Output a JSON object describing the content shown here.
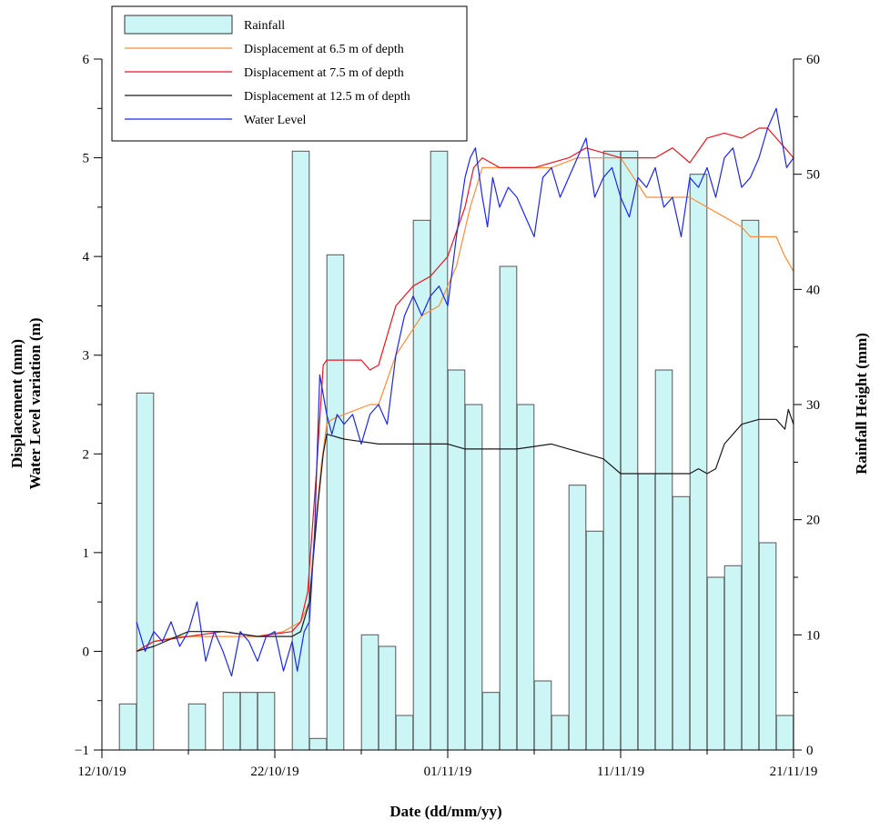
{
  "chart_data": {
    "type": "bar+line",
    "title": "",
    "xlabel": "Date (dd/mm/yy)",
    "ylabel_left_1": "Displacement (mm)",
    "ylabel_left_2": "Water Level variation (m)",
    "ylabel_right": "Rainfall Height (mm)",
    "x_ticks": [
      "12/10/19",
      "22/10/19",
      "01/11/19",
      "11/11/19",
      "21/11/19"
    ],
    "x_tick_days": [
      0,
      10,
      20,
      30,
      40
    ],
    "y_left_ticks": [
      "−1",
      "−0.5",
      "0",
      "0.5",
      "1",
      "1.5",
      "2",
      "2.5",
      "3",
      "3.5",
      "4",
      "4.5",
      "5",
      "5.5",
      "6"
    ],
    "y_left_labeled": [
      "−1",
      "0",
      "1",
      "2",
      "3",
      "4",
      "5",
      "6"
    ],
    "y_right_labeled": [
      "0",
      "10",
      "20",
      "30",
      "40",
      "50",
      "60"
    ],
    "ylim_left": [
      -1,
      6
    ],
    "ylim_right": [
      0,
      60
    ],
    "legend": {
      "placement": "top-left",
      "entries": [
        {
          "label": "Rainfall",
          "kind": "bar",
          "color": "#ccf6f6"
        },
        {
          "label": "Displacement at 6.5 m of depth",
          "kind": "line",
          "color": "#ff8c3a"
        },
        {
          "label": "Displacement at 7.5 m of depth",
          "kind": "line",
          "color": "#e8161e"
        },
        {
          "label": "Displacement at 12.5 m of depth",
          "kind": "line",
          "color": "#1a1a1a"
        },
        {
          "label": "Water Level",
          "kind": "line",
          "color": "#1e28e6"
        }
      ]
    },
    "rainfall": {
      "name": "Rainfall",
      "color": "#ccf6f6",
      "day_offset": [
        1.5,
        2.5,
        5.5,
        7.5,
        8.5,
        9.5,
        11.5,
        12.5,
        13.5,
        15.5,
        16.5,
        17.5,
        18.5,
        19.5,
        20.5,
        21.5,
        22.5,
        23.5,
        24.5,
        25.5,
        26.5,
        27.5,
        28.5,
        29.5,
        30.5,
        31.5,
        32.5,
        33.5,
        34.5,
        35.5,
        36.5,
        37.5,
        38.5,
        39.5
      ],
      "values": [
        4,
        31,
        4,
        5,
        5,
        5,
        52,
        1,
        43,
        10,
        9,
        3,
        46,
        52,
        33,
        30,
        5,
        42,
        30,
        6,
        3,
        23,
        19,
        52,
        52,
        24,
        33,
        22,
        50,
        15,
        16,
        46,
        18,
        3
      ]
    },
    "series": [
      {
        "name": "Displacement at 6.5 m of depth",
        "axis": "left",
        "color": "#ff8c3a",
        "x_days": [
          2.0,
          3.0,
          4.5,
          6.0,
          7.5,
          9.0,
          10.5,
          11.5,
          12.0,
          12.3,
          12.7,
          13.0,
          13.3,
          14.0,
          15.5,
          16.0,
          17.0,
          18.5,
          19.5,
          20.5,
          21.3,
          22.0,
          23.0,
          24.5,
          26.0,
          27.5,
          28.0,
          30.0,
          31.5,
          33.0,
          34.0,
          35.0,
          36.0,
          37.0,
          37.5,
          39.0,
          39.5,
          40.0
        ],
        "values": [
          0.0,
          0.1,
          0.15,
          0.15,
          0.15,
          0.15,
          0.2,
          0.3,
          0.5,
          1.2,
          1.9,
          2.3,
          2.35,
          2.4,
          2.5,
          2.5,
          3.0,
          3.4,
          3.5,
          3.9,
          4.5,
          4.9,
          4.9,
          4.9,
          4.9,
          5.0,
          5.0,
          5.0,
          4.6,
          4.6,
          4.6,
          4.5,
          4.4,
          4.3,
          4.2,
          4.2,
          4.0,
          3.85
        ]
      },
      {
        "name": "Displacement at 7.5 m of depth",
        "axis": "left",
        "color": "#e8161e",
        "x_days": [
          2.0,
          3.0,
          5.0,
          7.0,
          9.0,
          11.0,
          11.5,
          11.9,
          12.4,
          12.8,
          13.0,
          14.0,
          15.0,
          15.5,
          16.0,
          17.0,
          18.0,
          19.0,
          20.0,
          21.0,
          21.5,
          22.0,
          23.0,
          25.0,
          27.0,
          28.0,
          30.0,
          32.0,
          33.0,
          34.0,
          35.0,
          36.0,
          37.0,
          38.0,
          38.5,
          39.0,
          39.5,
          40.0
        ],
        "values": [
          0.0,
          0.1,
          0.15,
          0.2,
          0.15,
          0.2,
          0.3,
          0.6,
          1.8,
          2.9,
          2.95,
          2.95,
          2.95,
          2.85,
          2.9,
          3.5,
          3.7,
          3.8,
          4.0,
          4.5,
          4.9,
          5.0,
          4.9,
          4.9,
          5.0,
          5.1,
          5.0,
          5.0,
          5.1,
          4.95,
          5.2,
          5.25,
          5.2,
          5.3,
          5.3,
          5.2,
          5.1,
          5.0
        ]
      },
      {
        "name": "Displacement at 12.5 m of depth",
        "axis": "left",
        "color": "#1a1a1a",
        "x_days": [
          2.0,
          3.0,
          5.0,
          7.0,
          9.0,
          11.0,
          11.5,
          12.0,
          12.5,
          12.8,
          13.0,
          14.0,
          16.0,
          18.0,
          20.0,
          21.0,
          22.0,
          24.0,
          26.0,
          27.0,
          28.0,
          29.0,
          30.0,
          32.0,
          33.0,
          34.0,
          34.5,
          35.0,
          35.5,
          36.0,
          37.0,
          38.0,
          39.0,
          39.5,
          39.7,
          40.0
        ],
        "values": [
          0.0,
          0.05,
          0.2,
          0.2,
          0.15,
          0.15,
          0.2,
          0.5,
          1.5,
          2.0,
          2.2,
          2.15,
          2.1,
          2.1,
          2.1,
          2.05,
          2.05,
          2.05,
          2.1,
          2.05,
          2.0,
          1.95,
          1.8,
          1.8,
          1.8,
          1.8,
          1.85,
          1.8,
          1.85,
          2.1,
          2.3,
          2.35,
          2.35,
          2.25,
          2.45,
          2.3
        ]
      },
      {
        "name": "Water Level",
        "axis": "left",
        "color": "#1e28e6",
        "x_days": [
          2.0,
          2.5,
          3.0,
          3.5,
          4.0,
          4.5,
          5.0,
          5.5,
          6.0,
          6.5,
          7.0,
          7.5,
          8.0,
          8.5,
          9.0,
          9.5,
          10.0,
          10.5,
          11.0,
          11.3,
          11.7,
          12.0,
          12.3,
          12.6,
          13.0,
          13.3,
          13.6,
          14.0,
          14.5,
          15.0,
          15.5,
          16.0,
          16.5,
          17.0,
          17.5,
          18.0,
          18.5,
          19.0,
          19.5,
          20.0,
          20.5,
          21.0,
          21.3,
          21.6,
          22.0,
          22.3,
          22.6,
          23.0,
          23.5,
          24.0,
          24.5,
          25.0,
          25.5,
          26.0,
          26.5,
          27.0,
          27.5,
          28.0,
          28.5,
          29.0,
          29.5,
          30.0,
          30.5,
          31.0,
          31.5,
          32.0,
          32.5,
          33.0,
          33.5,
          34.0,
          34.5,
          35.0,
          35.5,
          36.0,
          36.5,
          37.0,
          37.5,
          38.0,
          38.5,
          39.0,
          39.3,
          39.6,
          40.0
        ],
        "values": [
          0.3,
          0.0,
          0.2,
          0.1,
          0.3,
          0.05,
          0.2,
          0.5,
          -0.1,
          0.2,
          0.0,
          -0.25,
          0.2,
          0.1,
          -0.1,
          0.15,
          0.2,
          -0.2,
          0.1,
          -0.2,
          0.2,
          0.3,
          1.2,
          2.8,
          2.4,
          2.2,
          2.4,
          2.3,
          2.4,
          2.1,
          2.4,
          2.5,
          2.3,
          3.0,
          3.4,
          3.6,
          3.4,
          3.6,
          3.7,
          3.5,
          4.2,
          4.8,
          5.0,
          5.1,
          4.6,
          4.3,
          4.8,
          4.5,
          4.7,
          4.6,
          4.4,
          4.2,
          4.8,
          4.9,
          4.6,
          4.8,
          5.0,
          5.2,
          4.6,
          4.8,
          4.9,
          4.6,
          4.4,
          4.8,
          4.7,
          4.9,
          4.5,
          4.6,
          4.2,
          4.8,
          4.7,
          4.9,
          4.6,
          5.0,
          5.1,
          4.7,
          4.8,
          5.0,
          5.3,
          5.5,
          5.2,
          4.9,
          5.0
        ]
      }
    ]
  }
}
